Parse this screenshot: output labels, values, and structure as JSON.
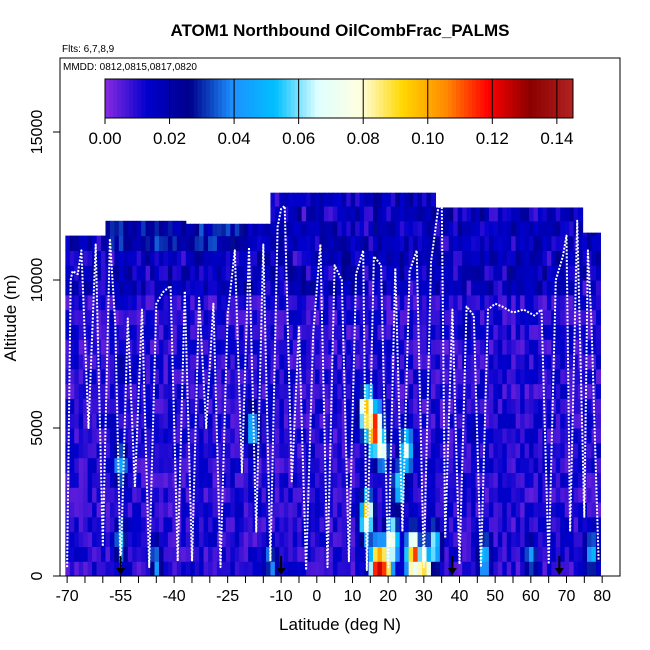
{
  "chart_data": {
    "type": "heatmap",
    "title": "ATOM1 Northbound OilCombFrac_PALMS",
    "flights_label": "Flts: 6,7,8,9",
    "dates_label": "MMDD: 0812,0815,0817,0820",
    "xlabel": "Latitude (deg N)",
    "ylabel": "Altitude (m)",
    "xlim": [
      -72,
      85
    ],
    "ylim": [
      0,
      17500
    ],
    "x_ticks": [
      -70,
      -55,
      -40,
      -25,
      -10,
      0,
      10,
      20,
      30,
      40,
      50,
      60,
      70,
      80
    ],
    "x_tick_labels": [
      "-70",
      "-55",
      "-40",
      "-25",
      "-10",
      "0",
      "10",
      "20",
      "30",
      "40",
      "50",
      "60",
      "70",
      "80"
    ],
    "x_minor_ticks": [
      -65,
      -60,
      -50,
      -45,
      -35,
      -30,
      -20,
      -15,
      -5,
      5,
      15,
      25,
      35,
      45,
      55,
      65,
      75
    ],
    "y_ticks": [
      0,
      5000,
      10000,
      15000
    ],
    "y_tick_labels": [
      "0",
      "5000",
      "10000",
      "15000"
    ],
    "colorbar": {
      "min": 0,
      "max": 0.145,
      "ticks": [
        0.0,
        0.02,
        0.04,
        0.06,
        0.08,
        0.1,
        0.12,
        0.14
      ],
      "tick_labels": [
        "0.00",
        "0.02",
        "0.04",
        "0.06",
        "0.08",
        "0.10",
        "0.12",
        "0.14"
      ],
      "colors": [
        "#8a2be2",
        "#0000cd",
        "#00008b",
        "#1e90ff",
        "#00bfff",
        "#e0ffff",
        "#ffffe0",
        "#ffd700",
        "#ff8c00",
        "#ff0000",
        "#8b0000",
        "#b22222"
      ]
    },
    "envelope": [
      {
        "lat": [
          -70.5,
          -59
        ],
        "top": 11500
      },
      {
        "lat": [
          -59,
          -37
        ],
        "top": 12000
      },
      {
        "lat": [
          -37,
          -13
        ],
        "top": 11900
      },
      {
        "lat": [
          -13,
          33
        ],
        "top": 12950
      },
      {
        "lat": [
          33,
          75
        ],
        "top": 12450
      },
      {
        "lat": [
          75,
          80
        ],
        "top": 11600
      }
    ],
    "hotspots": [
      {
        "lat": 14,
        "alt": 5500,
        "value": 0.1
      },
      {
        "lat": 16,
        "alt": 5000,
        "value": 0.12
      },
      {
        "lat": 18,
        "alt": 4500,
        "value": 0.08
      },
      {
        "lat": 14,
        "alt": 2000,
        "value": 0.09
      },
      {
        "lat": 17,
        "alt": 300,
        "value": 0.13
      },
      {
        "lat": 19,
        "alt": 300,
        "value": 0.12
      },
      {
        "lat": 21,
        "alt": 1200,
        "value": 0.08
      },
      {
        "lat": 27,
        "alt": 700,
        "value": 0.11
      },
      {
        "lat": 30,
        "alt": 300,
        "value": 0.1
      },
      {
        "lat": 23,
        "alt": 3000,
        "value": 0.06
      },
      {
        "lat": 25,
        "alt": 4200,
        "value": 0.07
      },
      {
        "lat": 33,
        "alt": 1000,
        "value": 0.06
      },
      {
        "lat": 47,
        "alt": 700,
        "value": 0.05
      },
      {
        "lat": -55,
        "alt": 3800,
        "value": 0.05
      },
      {
        "lat": -55,
        "alt": 1200,
        "value": 0.045
      },
      {
        "lat": -45,
        "alt": 500,
        "value": 0.04
      },
      {
        "lat": -18,
        "alt": 5000,
        "value": 0.05
      },
      {
        "lat": -13,
        "alt": 500,
        "value": 0.04
      },
      {
        "lat": 60,
        "alt": 600,
        "value": 0.04
      },
      {
        "lat": 77,
        "alt": 800,
        "value": 0.05
      }
    ],
    "dark_bands": [
      {
        "lat": -57,
        "alt": 5000,
        "value": 0.02
      },
      {
        "lat": -55,
        "alt": 7000,
        "value": 0.025
      },
      {
        "lat": 10,
        "alt": 10000,
        "value": 0.02
      },
      {
        "lat": 42,
        "alt": 8500,
        "value": 0.022
      },
      {
        "lat": 44,
        "alt": 5000,
        "value": 0.02
      },
      {
        "lat": 60,
        "alt": 10700,
        "value": 0.02
      },
      {
        "lat": 28,
        "alt": 10500,
        "value": 0.018
      },
      {
        "lat": -40,
        "alt": 11600,
        "value": 0.015
      }
    ],
    "flight_profiles": [
      {
        "lat": [
          -70,
          -69,
          -68.5,
          -67,
          -66,
          -64,
          -62,
          -60,
          -58,
          -56.5,
          -55,
          -53,
          -51,
          -49,
          -47,
          -45,
          -43,
          -41,
          -39,
          -37
        ],
        "alt": [
          300,
          10000,
          10300,
          10200,
          11000,
          5000,
          11200,
          1000,
          11400,
          8500,
          200,
          8700,
          3000,
          9000,
          300,
          9200,
          9600,
          9800,
          500,
          9600
        ]
      },
      {
        "lat": [
          -37,
          -35,
          -33,
          -31,
          -29,
          -27,
          -25,
          -23,
          -21,
          -19,
          -17,
          -15,
          -13,
          -11,
          -10,
          -9,
          -7,
          -5,
          -3,
          -1,
          1
        ],
        "alt": [
          9600,
          500,
          9400,
          5000,
          9200,
          300,
          8800,
          11000,
          3500,
          11100,
          1500,
          11200,
          500,
          11800,
          12400,
          12500,
          3200,
          8400,
          200,
          8200,
          11200
        ]
      },
      {
        "lat": [
          1,
          3,
          5,
          7,
          9,
          11,
          13,
          14,
          16,
          18,
          20,
          22,
          24,
          26,
          28,
          30,
          32,
          34,
          35,
          36
        ],
        "alt": [
          11200,
          300,
          10500,
          10000,
          500,
          10200,
          11000,
          200,
          10800,
          10500,
          300,
          10400,
          1500,
          10300,
          11000,
          300,
          10600,
          12400,
          12800,
          1300
        ]
      },
      {
        "lat": [
          36,
          38,
          40,
          42,
          44,
          46,
          48,
          50,
          52,
          55,
          58,
          61,
          63,
          65,
          67,
          69,
          70,
          71,
          73,
          75,
          76,
          77,
          79
        ],
        "alt": [
          1300,
          9000,
          400,
          9100,
          8800,
          300,
          9000,
          9200,
          9100,
          8900,
          9000,
          8800,
          9000,
          400,
          10000,
          10800,
          11500,
          1500,
          12000,
          2000,
          11000,
          8500,
          500
        ]
      }
    ],
    "arrows_lat": [
      -55,
      -10,
      38,
      68
    ]
  }
}
